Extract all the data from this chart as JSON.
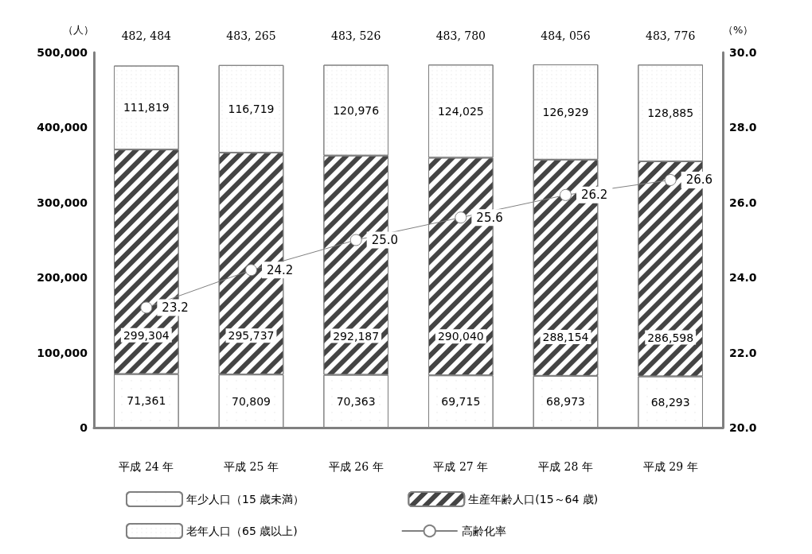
{
  "chart_data": {
    "type": "bar",
    "stacked": true,
    "ylabel": "（人）",
    "y2label": "（%）",
    "categories": [
      "平成 24 年",
      "平成 25 年",
      "平成 26 年",
      "平成 27 年",
      "平成 28 年",
      "平成 29 年"
    ],
    "series": [
      {
        "name": "年少人口（15 歳未満）",
        "color": "#ffffff",
        "values": [
          71361,
          70809,
          70363,
          69715,
          68973,
          68293
        ],
        "value_labels": [
          "71,361",
          "70,809",
          "70,363",
          "69,715",
          "68,973",
          "68,293"
        ]
      },
      {
        "name": "生産年齢人口(15～64 歳)",
        "color": "#ffffff",
        "values": [
          299304,
          295737,
          292187,
          290040,
          288154,
          286598
        ],
        "value_labels": [
          "299,304",
          "295,737",
          "292,187",
          "290,040",
          "288,154",
          "286,598"
        ]
      },
      {
        "name": "老年人口（65 歳以上)",
        "color": "#ffffff",
        "values": [
          111819,
          116719,
          120976,
          124025,
          126929,
          128885
        ],
        "value_labels": [
          "111,819",
          "116,719",
          "120,976",
          "124,025",
          "126,929",
          "128,885"
        ]
      },
      {
        "name": "高齢化率",
        "type": "line",
        "axis": "y2",
        "color": "#808080",
        "values": [
          23.2,
          24.2,
          25.0,
          25.6,
          26.2,
          26.6
        ],
        "value_labels": [
          "23.2",
          "24.2",
          "25.0",
          "25.6",
          "26.2",
          "26.6"
        ]
      }
    ],
    "totals": [
      "482, 484",
      "483, 265",
      "483, 526",
      "483, 780",
      "484, 056",
      "483, 776"
    ],
    "ylim": [
      0,
      500000
    ],
    "yticks": [
      0,
      {
        "value": 100000,
        "label": "100,000"
      },
      {
        "value": 200000,
        "label": "200,000"
      },
      {
        "value": 300000,
        "label": "300,000"
      },
      {
        "value": 400000,
        "label": "400,000"
      },
      {
        "value": 500000,
        "label": "500,000"
      }
    ],
    "y2lim": [
      20,
      30
    ],
    "y2ticks": [
      {
        "value": 20,
        "label": "20.0"
      },
      {
        "value": 22,
        "label": "22.0"
      },
      {
        "value": 24,
        "label": "24.0"
      },
      {
        "value": 26,
        "label": "26.0"
      },
      {
        "value": 28,
        "label": "28.0"
      },
      {
        "value": 30,
        "label": "30.0"
      }
    ],
    "marker": "circle",
    "legend": "bottom",
    "grid": false
  }
}
